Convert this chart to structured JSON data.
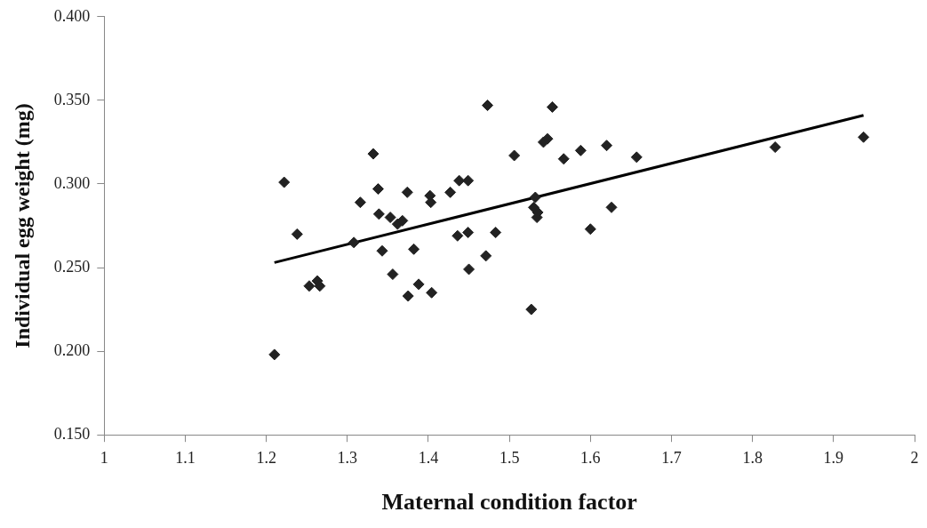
{
  "chart_data": {
    "type": "scatter",
    "xlabel": "Maternal condition factor",
    "ylabel": "Individual egg weight (mg)",
    "xlim": [
      1,
      2
    ],
    "xticks": [
      1,
      1.1,
      1.2,
      1.3,
      1.4,
      1.5,
      1.6,
      1.7,
      1.8,
      1.9,
      2
    ],
    "ylim": [
      0.15,
      0.4
    ],
    "yticks": [
      {
        "value": 0.15,
        "label": "0.150"
      },
      {
        "value": 0.2,
        "label": "0.200"
      },
      {
        "value": 0.25,
        "label": "0.250"
      },
      {
        "value": 0.3,
        "label": "0.300"
      },
      {
        "value": 0.35,
        "label": "0.350"
      },
      {
        "value": 0.4,
        "label": "0.400"
      }
    ],
    "grid": false,
    "legend": false,
    "marker": "diamond",
    "series": [
      {
        "color": "#222222",
        "x": [
          1.21,
          1.222,
          1.238,
          1.253,
          1.263,
          1.266,
          1.308,
          1.316,
          1.332,
          1.338,
          1.339,
          1.343,
          1.353,
          1.356,
          1.362,
          1.368,
          1.374,
          1.375,
          1.382,
          1.388,
          1.402,
          1.403,
          1.404,
          1.427,
          1.436,
          1.438,
          1.449,
          1.449,
          1.45,
          1.471,
          1.473,
          1.483,
          1.506,
          1.527,
          1.53,
          1.532,
          1.534,
          1.535,
          1.542,
          1.547,
          1.553,
          1.567,
          1.588,
          1.6,
          1.62,
          1.623,
          1.626,
          1.657,
          1.828,
          1.937
        ],
        "values": [
          0.198,
          0.301,
          0.27,
          0.239,
          0.242,
          0.239,
          0.265,
          0.289,
          0.318,
          0.297,
          0.282,
          0.26,
          0.28,
          0.246,
          0.276,
          0.278,
          0.295,
          0.233,
          0.261,
          0.24,
          0.293,
          0.289,
          0.235,
          0.295,
          0.269,
          0.302,
          0.302,
          0.271,
          0.249,
          0.257,
          0.347,
          0.271,
          0.317,
          0.225,
          0.286,
          0.292,
          0.28,
          0.283,
          0.325,
          0.327,
          0.346,
          0.315,
          0.32,
          0.273,
          0.323,
          null,
          0.286,
          0.316,
          0.322,
          0.328
        ]
      },
      {
        "type": "line",
        "marker": "none",
        "color": "#000000",
        "x": [
          1.21,
          1.937
        ],
        "values": [
          0.253,
          0.341
        ]
      }
    ]
  }
}
